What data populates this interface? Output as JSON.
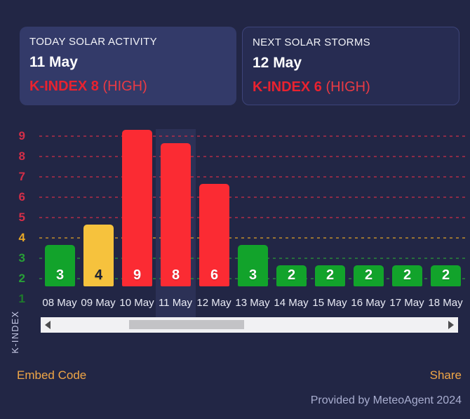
{
  "widget": {
    "today_card": {
      "title": "TODAY SOLAR ACTIVITY",
      "date": "11 May",
      "kindex": "K-INDEX 8",
      "severity": "(HIGH)"
    },
    "next_card": {
      "title": "NEXT SOLAR STORMS",
      "date": "12 May",
      "kindex": "K-INDEX 6",
      "severity": "(HIGH)"
    }
  },
  "chart_data": {
    "type": "bar",
    "title": "",
    "ylabel": "K-INDEX",
    "categories": [
      "08 May",
      "09 May",
      "10 May",
      "11 May",
      "12 May",
      "13 May",
      "14 May",
      "15 May",
      "16 May",
      "17 May",
      "18 May"
    ],
    "values": [
      3,
      4,
      9,
      8,
      6,
      3,
      2,
      2,
      2,
      2,
      2
    ],
    "highlighted_category": "11 May",
    "yticks": [
      1,
      2,
      3,
      4,
      5,
      6,
      7,
      8,
      9
    ],
    "ylim": [
      1,
      9
    ],
    "grid": true,
    "legend": "none",
    "bar_colors": {
      "low_green": "#12a32b",
      "mid_yellow": "#f6c23d",
      "high_red": "#fb2b33"
    },
    "value_label_colors": {
      "on_green": "#ffffff",
      "on_yellow": "#1d2233",
      "on_red": "#ffffff"
    },
    "ytick_colors": [
      "#1e7c2b",
      "#28a037",
      "#28a037",
      "#e8a826",
      "#d42e48",
      "#d42e48",
      "#d42e48",
      "#d42e48",
      "#d42e48"
    ],
    "highlight_band_color": "#2c3156"
  },
  "footer": {
    "embed_code": "Embed Code",
    "share": "Share",
    "provided_by": "Provided by MeteoAgent 2024"
  },
  "accent_colors": {
    "alert_red": "#e9222f",
    "link_orange": "#f0a646",
    "caption_lavender": "#a9aed0"
  }
}
